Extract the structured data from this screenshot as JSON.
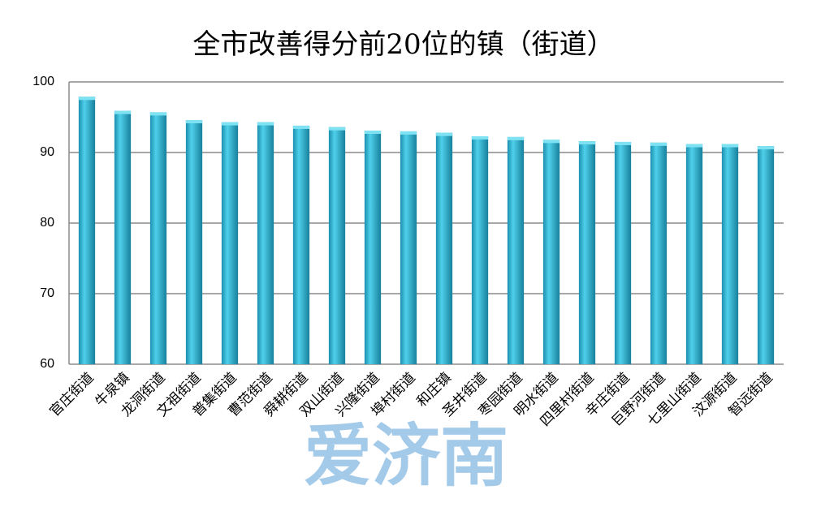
{
  "chart_data": {
    "type": "bar",
    "title": "全市改善得分前20位的镇（街道）",
    "categories": [
      "官庄街道",
      "牛泉镇",
      "龙洞街道",
      "文祖街道",
      "普集街道",
      "曹范街道",
      "舜耕街道",
      "双山街道",
      "兴隆街道",
      "埠村街道",
      "和庄镇",
      "圣井街道",
      "枣园街道",
      "明水街道",
      "四里村街道",
      "辛庄街道",
      "巨野河街道",
      "七里山街道",
      "汶源街道",
      "智远街道"
    ],
    "values": [
      97.9,
      95.9,
      95.7,
      94.6,
      94.3,
      94.3,
      93.8,
      93.6,
      93.1,
      93.0,
      92.8,
      92.3,
      92.2,
      91.8,
      91.6,
      91.5,
      91.4,
      91.2,
      91.2,
      90.9
    ],
    "color": "#2aa8c6",
    "ylim": [
      60,
      100
    ],
    "yticks": [
      60,
      70,
      80,
      90,
      100
    ],
    "grid": true
  },
  "watermark": "爱济南"
}
